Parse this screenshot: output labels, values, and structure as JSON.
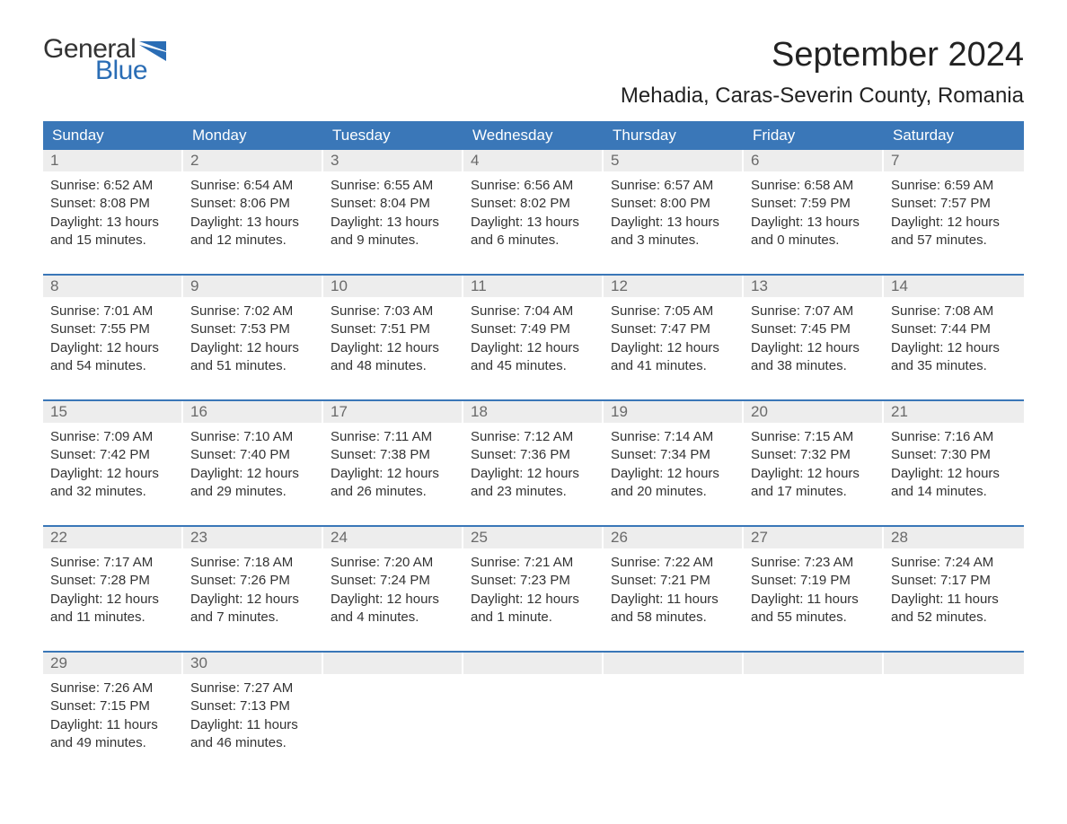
{
  "logo": {
    "general": "General",
    "blue": "Blue",
    "flag_color": "#2a6db5"
  },
  "header": {
    "month_title": "September 2024",
    "location": "Mehadia, Caras-Severin County, Romania"
  },
  "colors": {
    "header_bg": "#3a77b8",
    "header_text": "#ffffff",
    "daynum_bg": "#ededed",
    "daynum_text": "#6a6a6a",
    "body_text": "#333333",
    "row_border": "#3a77b8",
    "page_bg": "#ffffff"
  },
  "typography": {
    "month_title_size": 38,
    "location_size": 24,
    "dow_size": 17,
    "daynum_size": 17,
    "body_size": 15
  },
  "calendar": {
    "days_of_week": [
      "Sunday",
      "Monday",
      "Tuesday",
      "Wednesday",
      "Thursday",
      "Friday",
      "Saturday"
    ],
    "weeks": [
      [
        {
          "n": "1",
          "sunrise": "Sunrise: 6:52 AM",
          "sunset": "Sunset: 8:08 PM",
          "dl1": "Daylight: 13 hours",
          "dl2": "and 15 minutes."
        },
        {
          "n": "2",
          "sunrise": "Sunrise: 6:54 AM",
          "sunset": "Sunset: 8:06 PM",
          "dl1": "Daylight: 13 hours",
          "dl2": "and 12 minutes."
        },
        {
          "n": "3",
          "sunrise": "Sunrise: 6:55 AM",
          "sunset": "Sunset: 8:04 PM",
          "dl1": "Daylight: 13 hours",
          "dl2": "and 9 minutes."
        },
        {
          "n": "4",
          "sunrise": "Sunrise: 6:56 AM",
          "sunset": "Sunset: 8:02 PM",
          "dl1": "Daylight: 13 hours",
          "dl2": "and 6 minutes."
        },
        {
          "n": "5",
          "sunrise": "Sunrise: 6:57 AM",
          "sunset": "Sunset: 8:00 PM",
          "dl1": "Daylight: 13 hours",
          "dl2": "and 3 minutes."
        },
        {
          "n": "6",
          "sunrise": "Sunrise: 6:58 AM",
          "sunset": "Sunset: 7:59 PM",
          "dl1": "Daylight: 13 hours",
          "dl2": "and 0 minutes."
        },
        {
          "n": "7",
          "sunrise": "Sunrise: 6:59 AM",
          "sunset": "Sunset: 7:57 PM",
          "dl1": "Daylight: 12 hours",
          "dl2": "and 57 minutes."
        }
      ],
      [
        {
          "n": "8",
          "sunrise": "Sunrise: 7:01 AM",
          "sunset": "Sunset: 7:55 PM",
          "dl1": "Daylight: 12 hours",
          "dl2": "and 54 minutes."
        },
        {
          "n": "9",
          "sunrise": "Sunrise: 7:02 AM",
          "sunset": "Sunset: 7:53 PM",
          "dl1": "Daylight: 12 hours",
          "dl2": "and 51 minutes."
        },
        {
          "n": "10",
          "sunrise": "Sunrise: 7:03 AM",
          "sunset": "Sunset: 7:51 PM",
          "dl1": "Daylight: 12 hours",
          "dl2": "and 48 minutes."
        },
        {
          "n": "11",
          "sunrise": "Sunrise: 7:04 AM",
          "sunset": "Sunset: 7:49 PM",
          "dl1": "Daylight: 12 hours",
          "dl2": "and 45 minutes."
        },
        {
          "n": "12",
          "sunrise": "Sunrise: 7:05 AM",
          "sunset": "Sunset: 7:47 PM",
          "dl1": "Daylight: 12 hours",
          "dl2": "and 41 minutes."
        },
        {
          "n": "13",
          "sunrise": "Sunrise: 7:07 AM",
          "sunset": "Sunset: 7:45 PM",
          "dl1": "Daylight: 12 hours",
          "dl2": "and 38 minutes."
        },
        {
          "n": "14",
          "sunrise": "Sunrise: 7:08 AM",
          "sunset": "Sunset: 7:44 PM",
          "dl1": "Daylight: 12 hours",
          "dl2": "and 35 minutes."
        }
      ],
      [
        {
          "n": "15",
          "sunrise": "Sunrise: 7:09 AM",
          "sunset": "Sunset: 7:42 PM",
          "dl1": "Daylight: 12 hours",
          "dl2": "and 32 minutes."
        },
        {
          "n": "16",
          "sunrise": "Sunrise: 7:10 AM",
          "sunset": "Sunset: 7:40 PM",
          "dl1": "Daylight: 12 hours",
          "dl2": "and 29 minutes."
        },
        {
          "n": "17",
          "sunrise": "Sunrise: 7:11 AM",
          "sunset": "Sunset: 7:38 PM",
          "dl1": "Daylight: 12 hours",
          "dl2": "and 26 minutes."
        },
        {
          "n": "18",
          "sunrise": "Sunrise: 7:12 AM",
          "sunset": "Sunset: 7:36 PM",
          "dl1": "Daylight: 12 hours",
          "dl2": "and 23 minutes."
        },
        {
          "n": "19",
          "sunrise": "Sunrise: 7:14 AM",
          "sunset": "Sunset: 7:34 PM",
          "dl1": "Daylight: 12 hours",
          "dl2": "and 20 minutes."
        },
        {
          "n": "20",
          "sunrise": "Sunrise: 7:15 AM",
          "sunset": "Sunset: 7:32 PM",
          "dl1": "Daylight: 12 hours",
          "dl2": "and 17 minutes."
        },
        {
          "n": "21",
          "sunrise": "Sunrise: 7:16 AM",
          "sunset": "Sunset: 7:30 PM",
          "dl1": "Daylight: 12 hours",
          "dl2": "and 14 minutes."
        }
      ],
      [
        {
          "n": "22",
          "sunrise": "Sunrise: 7:17 AM",
          "sunset": "Sunset: 7:28 PM",
          "dl1": "Daylight: 12 hours",
          "dl2": "and 11 minutes."
        },
        {
          "n": "23",
          "sunrise": "Sunrise: 7:18 AM",
          "sunset": "Sunset: 7:26 PM",
          "dl1": "Daylight: 12 hours",
          "dl2": "and 7 minutes."
        },
        {
          "n": "24",
          "sunrise": "Sunrise: 7:20 AM",
          "sunset": "Sunset: 7:24 PM",
          "dl1": "Daylight: 12 hours",
          "dl2": "and 4 minutes."
        },
        {
          "n": "25",
          "sunrise": "Sunrise: 7:21 AM",
          "sunset": "Sunset: 7:23 PM",
          "dl1": "Daylight: 12 hours",
          "dl2": "and 1 minute."
        },
        {
          "n": "26",
          "sunrise": "Sunrise: 7:22 AM",
          "sunset": "Sunset: 7:21 PM",
          "dl1": "Daylight: 11 hours",
          "dl2": "and 58 minutes."
        },
        {
          "n": "27",
          "sunrise": "Sunrise: 7:23 AM",
          "sunset": "Sunset: 7:19 PM",
          "dl1": "Daylight: 11 hours",
          "dl2": "and 55 minutes."
        },
        {
          "n": "28",
          "sunrise": "Sunrise: 7:24 AM",
          "sunset": "Sunset: 7:17 PM",
          "dl1": "Daylight: 11 hours",
          "dl2": "and 52 minutes."
        }
      ],
      [
        {
          "n": "29",
          "sunrise": "Sunrise: 7:26 AM",
          "sunset": "Sunset: 7:15 PM",
          "dl1": "Daylight: 11 hours",
          "dl2": "and 49 minutes."
        },
        {
          "n": "30",
          "sunrise": "Sunrise: 7:27 AM",
          "sunset": "Sunset: 7:13 PM",
          "dl1": "Daylight: 11 hours",
          "dl2": "and 46 minutes."
        },
        {
          "n": "",
          "sunrise": "",
          "sunset": "",
          "dl1": "",
          "dl2": "",
          "empty": true
        },
        {
          "n": "",
          "sunrise": "",
          "sunset": "",
          "dl1": "",
          "dl2": "",
          "empty": true
        },
        {
          "n": "",
          "sunrise": "",
          "sunset": "",
          "dl1": "",
          "dl2": "",
          "empty": true
        },
        {
          "n": "",
          "sunrise": "",
          "sunset": "",
          "dl1": "",
          "dl2": "",
          "empty": true
        },
        {
          "n": "",
          "sunrise": "",
          "sunset": "",
          "dl1": "",
          "dl2": "",
          "empty": true
        }
      ]
    ]
  }
}
